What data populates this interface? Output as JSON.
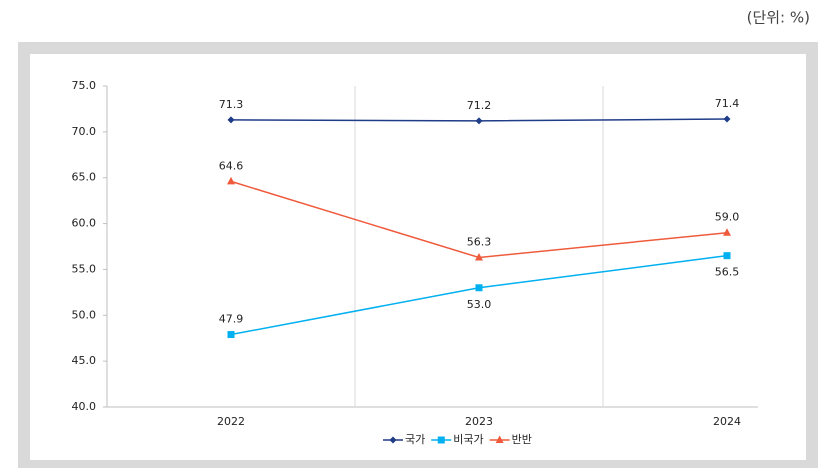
{
  "unit": "(단위: %)",
  "chart_data": {
    "type": "line",
    "categories": [
      "2022",
      "2023",
      "2024"
    ],
    "series": [
      {
        "name": "국가",
        "color": "#1f3c88",
        "marker": "diamond",
        "values": [
          71.3,
          71.2,
          71.4
        ],
        "value_labels": [
          "71.3",
          "71.2",
          "71.4"
        ]
      },
      {
        "name": "비국가",
        "color": "#00b0f0",
        "marker": "square",
        "values": [
          47.9,
          53.0,
          56.5
        ],
        "value_labels": [
          "47.9",
          "53.0",
          "56.5"
        ]
      },
      {
        "name": "반반",
        "color": "#f05a3c",
        "marker": "triangle",
        "values": [
          64.6,
          56.3,
          59.0
        ],
        "value_labels": [
          "64.6",
          "56.3",
          "59.0"
        ]
      }
    ],
    "ylim": [
      40,
      75
    ],
    "yticks": [
      {
        "value": 40,
        "label": "40.0"
      },
      {
        "value": 45,
        "label": "45.0"
      },
      {
        "value": 50,
        "label": "50.0"
      },
      {
        "value": 55,
        "label": "55.0"
      },
      {
        "value": 60,
        "label": "60.0"
      },
      {
        "value": 65,
        "label": "65.0"
      },
      {
        "value": 70,
        "label": "70.0"
      },
      {
        "value": 75,
        "label": "75.0"
      }
    ],
    "legend": "bottom"
  }
}
